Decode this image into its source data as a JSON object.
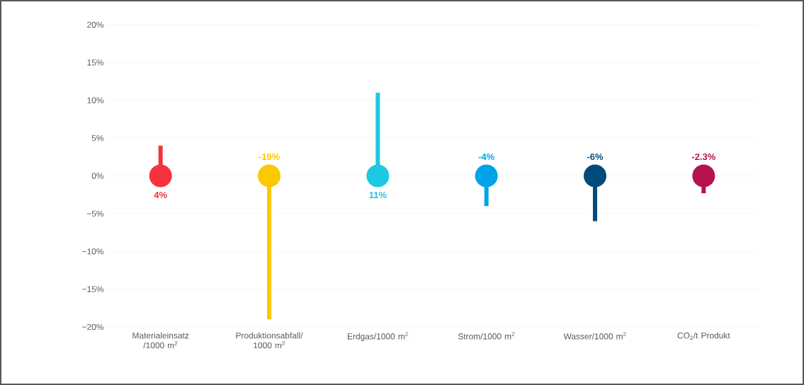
{
  "chart_data": {
    "type": "bar",
    "categories": [
      "Materialeinsatz /1000 m$^{2}$",
      "Produktionsabfall/ 1000 m$^{2}$",
      "Erdgas/1000 m$^{2}$",
      "Strom/1000 m$^{2}$",
      "Wasser/1000 m$^{2}$",
      "CO$_{2}$/t Produkt"
    ],
    "values": [
      4,
      -19,
      11,
      -4,
      -6,
      -2.3
    ],
    "value_labels": [
      "4%",
      "-19%",
      "11%",
      "-4%",
      "-6%",
      "-2.3%"
    ],
    "colors": [
      "#f5333f",
      "#fcc800",
      "#1ec8e1",
      "#00a3e8",
      "#004b7c",
      "#b5124f"
    ],
    "ylim": [
      -20,
      20
    ],
    "yticks": [
      {
        "value": -20,
        "label": "−20%"
      },
      {
        "value": -15,
        "label": "−15%"
      },
      {
        "value": -10,
        "label": "−10%"
      },
      {
        "value": -5,
        "label": "−5%"
      },
      {
        "value": 0,
        "label": "0%"
      },
      {
        "value": 5,
        "label": "5%"
      },
      {
        "value": 10,
        "label": "10%"
      },
      {
        "value": 15,
        "label": "15%"
      },
      {
        "value": 20,
        "label": "20%"
      }
    ],
    "grid": "y"
  }
}
